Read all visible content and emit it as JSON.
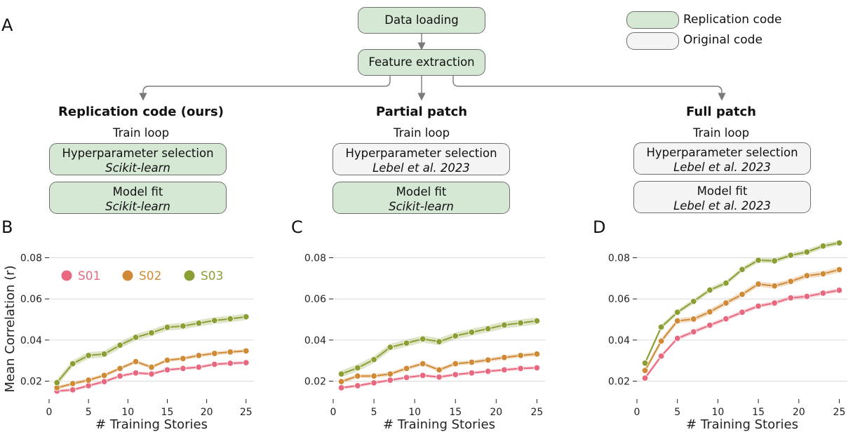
{
  "panels": {
    "A": "A",
    "B": "B",
    "C": "C",
    "D": "D"
  },
  "flow": {
    "data_loading": "Data loading",
    "feature_extraction": "Feature extraction",
    "legend": {
      "replication": "Replication code",
      "original": "Original code"
    },
    "colors": {
      "replication": "#d5e8d4",
      "original": "#f4f4f4",
      "arrow": "#7a7a7a"
    },
    "columns": [
      {
        "title": "Replication code (ours)",
        "sub": "Train loop",
        "hp_label": "Hyperparameter selection",
        "hp_impl": "Scikit-learn",
        "hp_type": "replication",
        "fit_label": "Model fit",
        "fit_impl": "Scikit-learn",
        "fit_type": "replication"
      },
      {
        "title": "Partial patch",
        "sub": "Train loop",
        "hp_label": "Hyperparameter selection",
        "hp_impl": "Lebel et al. 2023",
        "hp_type": "original",
        "fit_label": "Model fit",
        "fit_impl": "Scikit-learn",
        "fit_type": "replication"
      },
      {
        "title": "Full patch",
        "sub": "Train loop",
        "hp_label": "Hyperparameter selection",
        "hp_impl": "Lebel et al. 2023",
        "hp_type": "original",
        "fit_label": "Model fit",
        "fit_impl": "Lebel et al. 2023",
        "fit_type": "original"
      }
    ]
  },
  "chart_data": [
    {
      "panel": "B",
      "type": "line",
      "xlabel": "# Training Stories",
      "ylabel": "Mean Correlation (r)",
      "xlim": [
        0,
        26
      ],
      "ylim": [
        0.012,
        0.087
      ],
      "xticks": [
        0,
        5,
        10,
        15,
        20,
        25
      ],
      "yticks": [
        0.02,
        0.04,
        0.06,
        0.08
      ],
      "grid": "horizontal",
      "legend": "top-left",
      "x": [
        1,
        3,
        5,
        7,
        9,
        11,
        13,
        15,
        17,
        19,
        21,
        23,
        25
      ],
      "series": [
        {
          "name": "S01",
          "color": "#e8697f",
          "values": [
            0.0152,
            0.0158,
            0.0178,
            0.0198,
            0.0225,
            0.024,
            0.0235,
            0.0255,
            0.0262,
            0.0268,
            0.0282,
            0.0287,
            0.029
          ],
          "band": 0.0008
        },
        {
          "name": "S02",
          "color": "#d08a35",
          "values": [
            0.0168,
            0.0188,
            0.0205,
            0.0228,
            0.0262,
            0.0295,
            0.0268,
            0.0302,
            0.031,
            0.0325,
            0.0335,
            0.0342,
            0.0347
          ],
          "band": 0.0009
        },
        {
          "name": "S03",
          "color": "#8a9f33",
          "values": [
            0.0193,
            0.0285,
            0.0325,
            0.0332,
            0.0375,
            0.0413,
            0.0435,
            0.0462,
            0.0468,
            0.0482,
            0.0495,
            0.0503,
            0.0513
          ],
          "band": 0.0016
        }
      ]
    },
    {
      "panel": "C",
      "type": "line",
      "xlabel": "# Training Stories",
      "ylabel": "",
      "xlim": [
        0,
        26
      ],
      "ylim": [
        0.012,
        0.087
      ],
      "xticks": [
        0,
        5,
        10,
        15,
        20,
        25
      ],
      "yticks": [
        0.02,
        0.04,
        0.06,
        0.08
      ],
      "grid": "horizontal",
      "x": [
        1,
        3,
        5,
        7,
        9,
        11,
        13,
        15,
        17,
        19,
        21,
        23,
        25
      ],
      "series": [
        {
          "name": "S01",
          "color": "#e8697f",
          "values": [
            0.0168,
            0.0178,
            0.0192,
            0.0205,
            0.0218,
            0.0228,
            0.022,
            0.0232,
            0.024,
            0.0248,
            0.0255,
            0.0262,
            0.0265
          ],
          "band": 0.0008
        },
        {
          "name": "S02",
          "color": "#d08a35",
          "values": [
            0.0198,
            0.0225,
            0.0225,
            0.0235,
            0.0262,
            0.0285,
            0.0255,
            0.0285,
            0.0292,
            0.0303,
            0.0315,
            0.0325,
            0.0332
          ],
          "band": 0.001
        },
        {
          "name": "S03",
          "color": "#8a9f33",
          "values": [
            0.0235,
            0.0265,
            0.0305,
            0.0365,
            0.0385,
            0.0405,
            0.0392,
            0.042,
            0.0438,
            0.0455,
            0.0473,
            0.0483,
            0.0493
          ],
          "band": 0.0017
        }
      ]
    },
    {
      "panel": "D",
      "type": "line",
      "xlabel": "# Training Stories",
      "ylabel": "",
      "xlim": [
        0,
        26
      ],
      "ylim": [
        0.012,
        0.087
      ],
      "xticks": [
        0,
        5,
        10,
        15,
        20,
        25
      ],
      "yticks": [
        0.02,
        0.04,
        0.06,
        0.08
      ],
      "grid": "horizontal",
      "x": [
        1,
        3,
        5,
        7,
        9,
        11,
        13,
        15,
        17,
        19,
        21,
        23,
        25
      ],
      "series": [
        {
          "name": "S01",
          "color": "#e8697f",
          "values": [
            0.0215,
            0.0322,
            0.0408,
            0.044,
            0.0472,
            0.0503,
            0.0535,
            0.0565,
            0.058,
            0.0605,
            0.0612,
            0.0628,
            0.0642
          ],
          "band": 0.001
        },
        {
          "name": "S02",
          "color": "#d08a35",
          "values": [
            0.0252,
            0.0395,
            0.0493,
            0.0502,
            0.0537,
            0.058,
            0.0622,
            0.0672,
            0.0663,
            0.0685,
            0.0713,
            0.0722,
            0.0742
          ],
          "band": 0.0013
        },
        {
          "name": "S03",
          "color": "#8a9f33",
          "values": [
            0.0288,
            0.0463,
            0.0535,
            0.0588,
            0.0643,
            0.0677,
            0.0743,
            0.0788,
            0.0785,
            0.0812,
            0.0828,
            0.0857,
            0.0872
          ],
          "band": 0.0012
        }
      ]
    }
  ]
}
